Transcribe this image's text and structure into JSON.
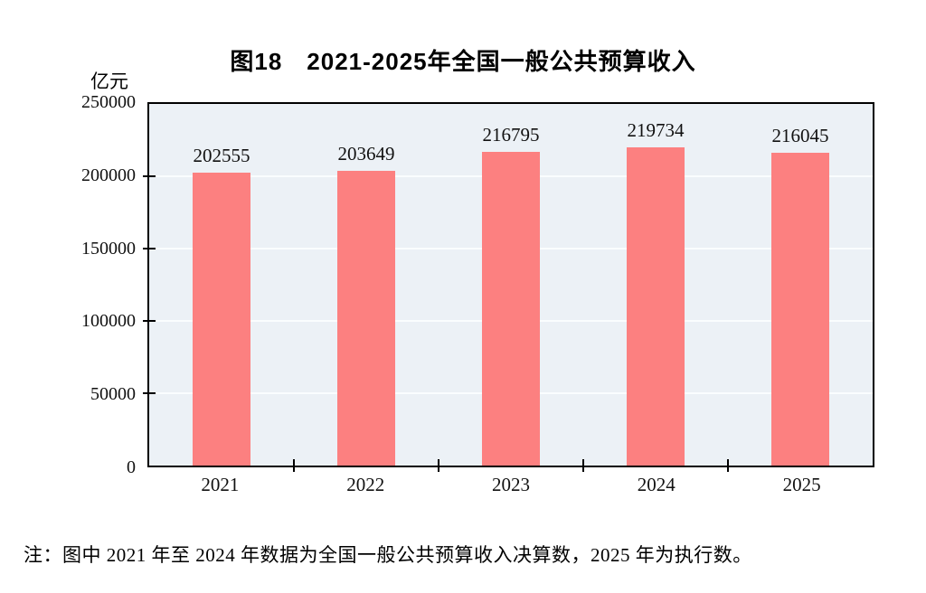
{
  "title": "图18　2021-2025年全国一般公共预算收入",
  "y_unit": "亿元",
  "note": "注：图中 2021 年至 2024 年数据为全国一般公共预算收入决算数，2025 年为执行数。",
  "colors": {
    "bar": "#FC8080",
    "plot_background": "#ECF1F6",
    "gridline": "#FAFDFE",
    "axis": "#000000",
    "text": "#111111"
  },
  "chart_data": {
    "type": "bar",
    "title": "图18　2021-2025年全国一般公共预算收入",
    "categories": [
      "2021",
      "2022",
      "2023",
      "2024",
      "2025"
    ],
    "values": [
      202555,
      203649,
      216795,
      219734,
      216045
    ],
    "xlabel": "",
    "ylabel": "亿元",
    "ylim": [
      0,
      250000
    ],
    "yticks": [
      0,
      50000,
      100000,
      150000,
      200000,
      250000
    ],
    "grid": true,
    "legend": false,
    "bar_labels_shown": true,
    "note": "注：图中 2021 年至 2024 年数据为全国一般公共预算收入决算数，2025 年为执行数。"
  }
}
